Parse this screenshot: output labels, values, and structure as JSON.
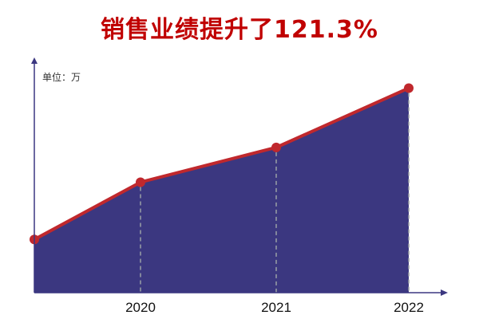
{
  "chart_data": {
    "type": "area",
    "title": "销售业绩提升了121.3%",
    "ylabel": "单位：万",
    "xlabel": "",
    "categories": [
      "",
      "2020",
      "2021",
      "2022"
    ],
    "values": [
      26,
      54,
      71,
      100
    ],
    "ylim": [
      0,
      115
    ],
    "grid": false,
    "legend": "none",
    "colors": {
      "fill": "#3b3780",
      "line": "#c0282d",
      "axis": "#3b3780",
      "dash": "#9aa0a6",
      "title": "#c00000"
    }
  }
}
